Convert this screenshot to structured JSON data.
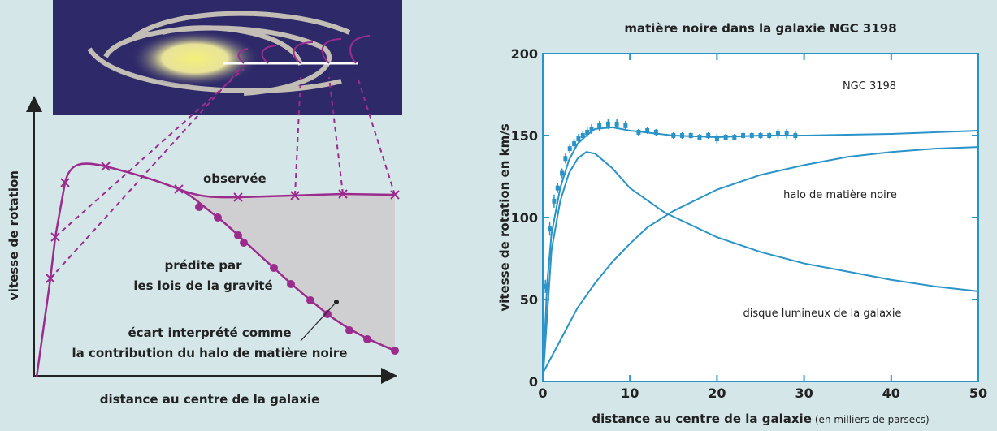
{
  "diagram": {
    "y_axis_label": "vitesse de rotation",
    "x_axis_label": "distance au centre de la galaxie",
    "observed_label": "observée",
    "predicted_label": [
      "prédite par",
      "les lois de la gravité"
    ],
    "gap_label": [
      "écart interprété comme",
      "la contribution du halo de matière noire"
    ]
  },
  "chart_data": {
    "type": "line",
    "title": "matière noire dans la galaxie NGC 3198",
    "ylabel": "vitesse de rotation en km/s",
    "xlabel": "distance au centre de la galaxie",
    "xlabel_note": "(en milliers de parsecs)",
    "annotations": [
      "NGC 3198",
      "halo de matière noire",
      "disque lumineux de la galaxie"
    ],
    "xlim": [
      0,
      50
    ],
    "ylim": [
      0,
      200
    ],
    "xticks": [
      0,
      10,
      20,
      30,
      40,
      50
    ],
    "yticks": [
      0,
      50,
      100,
      150,
      200
    ],
    "series": [
      {
        "type": "scatter",
        "color": "#2a93c8",
        "x": [
          0.3,
          0.8,
          1.3,
          1.7,
          2.2,
          2.6,
          3.1,
          3.6,
          4.1,
          4.6,
          5.1,
          5.6,
          6.5,
          7.5,
          8.5,
          9.5,
          11,
          12,
          13,
          15,
          16,
          17,
          18,
          19,
          20,
          21,
          22,
          23,
          24,
          25,
          26,
          27,
          28,
          29
        ],
        "values": [
          58,
          93,
          110,
          118,
          127,
          136,
          142,
          145,
          148,
          150,
          152,
          154,
          156,
          157,
          157,
          156,
          152,
          153,
          152,
          150,
          150,
          150,
          149,
          150,
          148,
          149,
          149,
          150,
          150,
          150,
          150,
          151,
          151,
          150
        ],
        "errors": [
          4,
          4,
          4,
          3,
          3,
          3,
          3,
          3,
          3,
          3,
          3,
          3,
          3,
          3,
          3,
          3,
          2,
          2,
          2,
          2,
          2,
          2,
          2,
          2,
          3,
          2,
          2,
          2,
          2,
          2,
          2,
          3,
          3,
          3
        ]
      },
      {
        "color": "#2a93c8",
        "x": [
          0,
          0.5,
          1,
          2,
          3,
          4,
          5,
          6,
          8,
          10,
          15,
          20,
          25,
          30,
          40,
          50
        ],
        "values": [
          0,
          60,
          90,
          118,
          135,
          145,
          150,
          154,
          155,
          153,
          150,
          149,
          150,
          150,
          151,
          153
        ]
      },
      {
        "color": "#2a93c8",
        "x": [
          0,
          1,
          2,
          3,
          4,
          5,
          6,
          8,
          10,
          14,
          20,
          25,
          30,
          35,
          40,
          45,
          50
        ],
        "values": [
          0,
          80,
          110,
          127,
          136,
          140,
          139,
          130,
          118,
          103,
          88,
          79,
          72,
          67,
          62,
          58,
          55
        ]
      },
      {
        "color": "#2a93c8",
        "x": [
          0,
          2,
          4,
          6,
          8,
          10,
          12,
          15,
          20,
          25,
          30,
          35,
          40,
          45,
          50
        ],
        "values": [
          5,
          25,
          45,
          60,
          73,
          84,
          94,
          104,
          117,
          126,
          132,
          137,
          140,
          142,
          143
        ]
      }
    ]
  }
}
